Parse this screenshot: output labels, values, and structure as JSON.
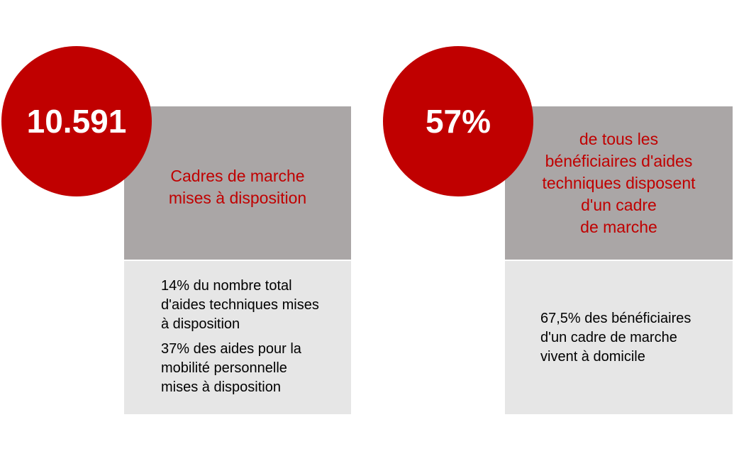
{
  "cards": [
    {
      "big_value": "10.591",
      "heading_lines": [
        "Cadres de marche",
        "mises à disposition"
      ],
      "details": [
        {
          "lines": [
            "14% du nombre total",
            "d'aides techniques mises",
            "à disposition"
          ]
        },
        {
          "lines": [
            "37% des aides pour la",
            "mobilité personnelle",
            "mises à disposition"
          ]
        }
      ]
    },
    {
      "big_value": "57%",
      "heading_lines": [
        "de tous les",
        "bénéficiaires d'aides",
        "techniques disposent",
        "d'un cadre",
        "de marche"
      ],
      "details": [
        {
          "lines": [
            "67,5% des bénéficiaires",
            "d'un cadre de marche",
            "vivent à domicile"
          ]
        }
      ]
    }
  ],
  "colors": {
    "accent_red": "#c00000",
    "heading_box": "#aaa6a6",
    "detail_box": "#e6e6e6"
  }
}
